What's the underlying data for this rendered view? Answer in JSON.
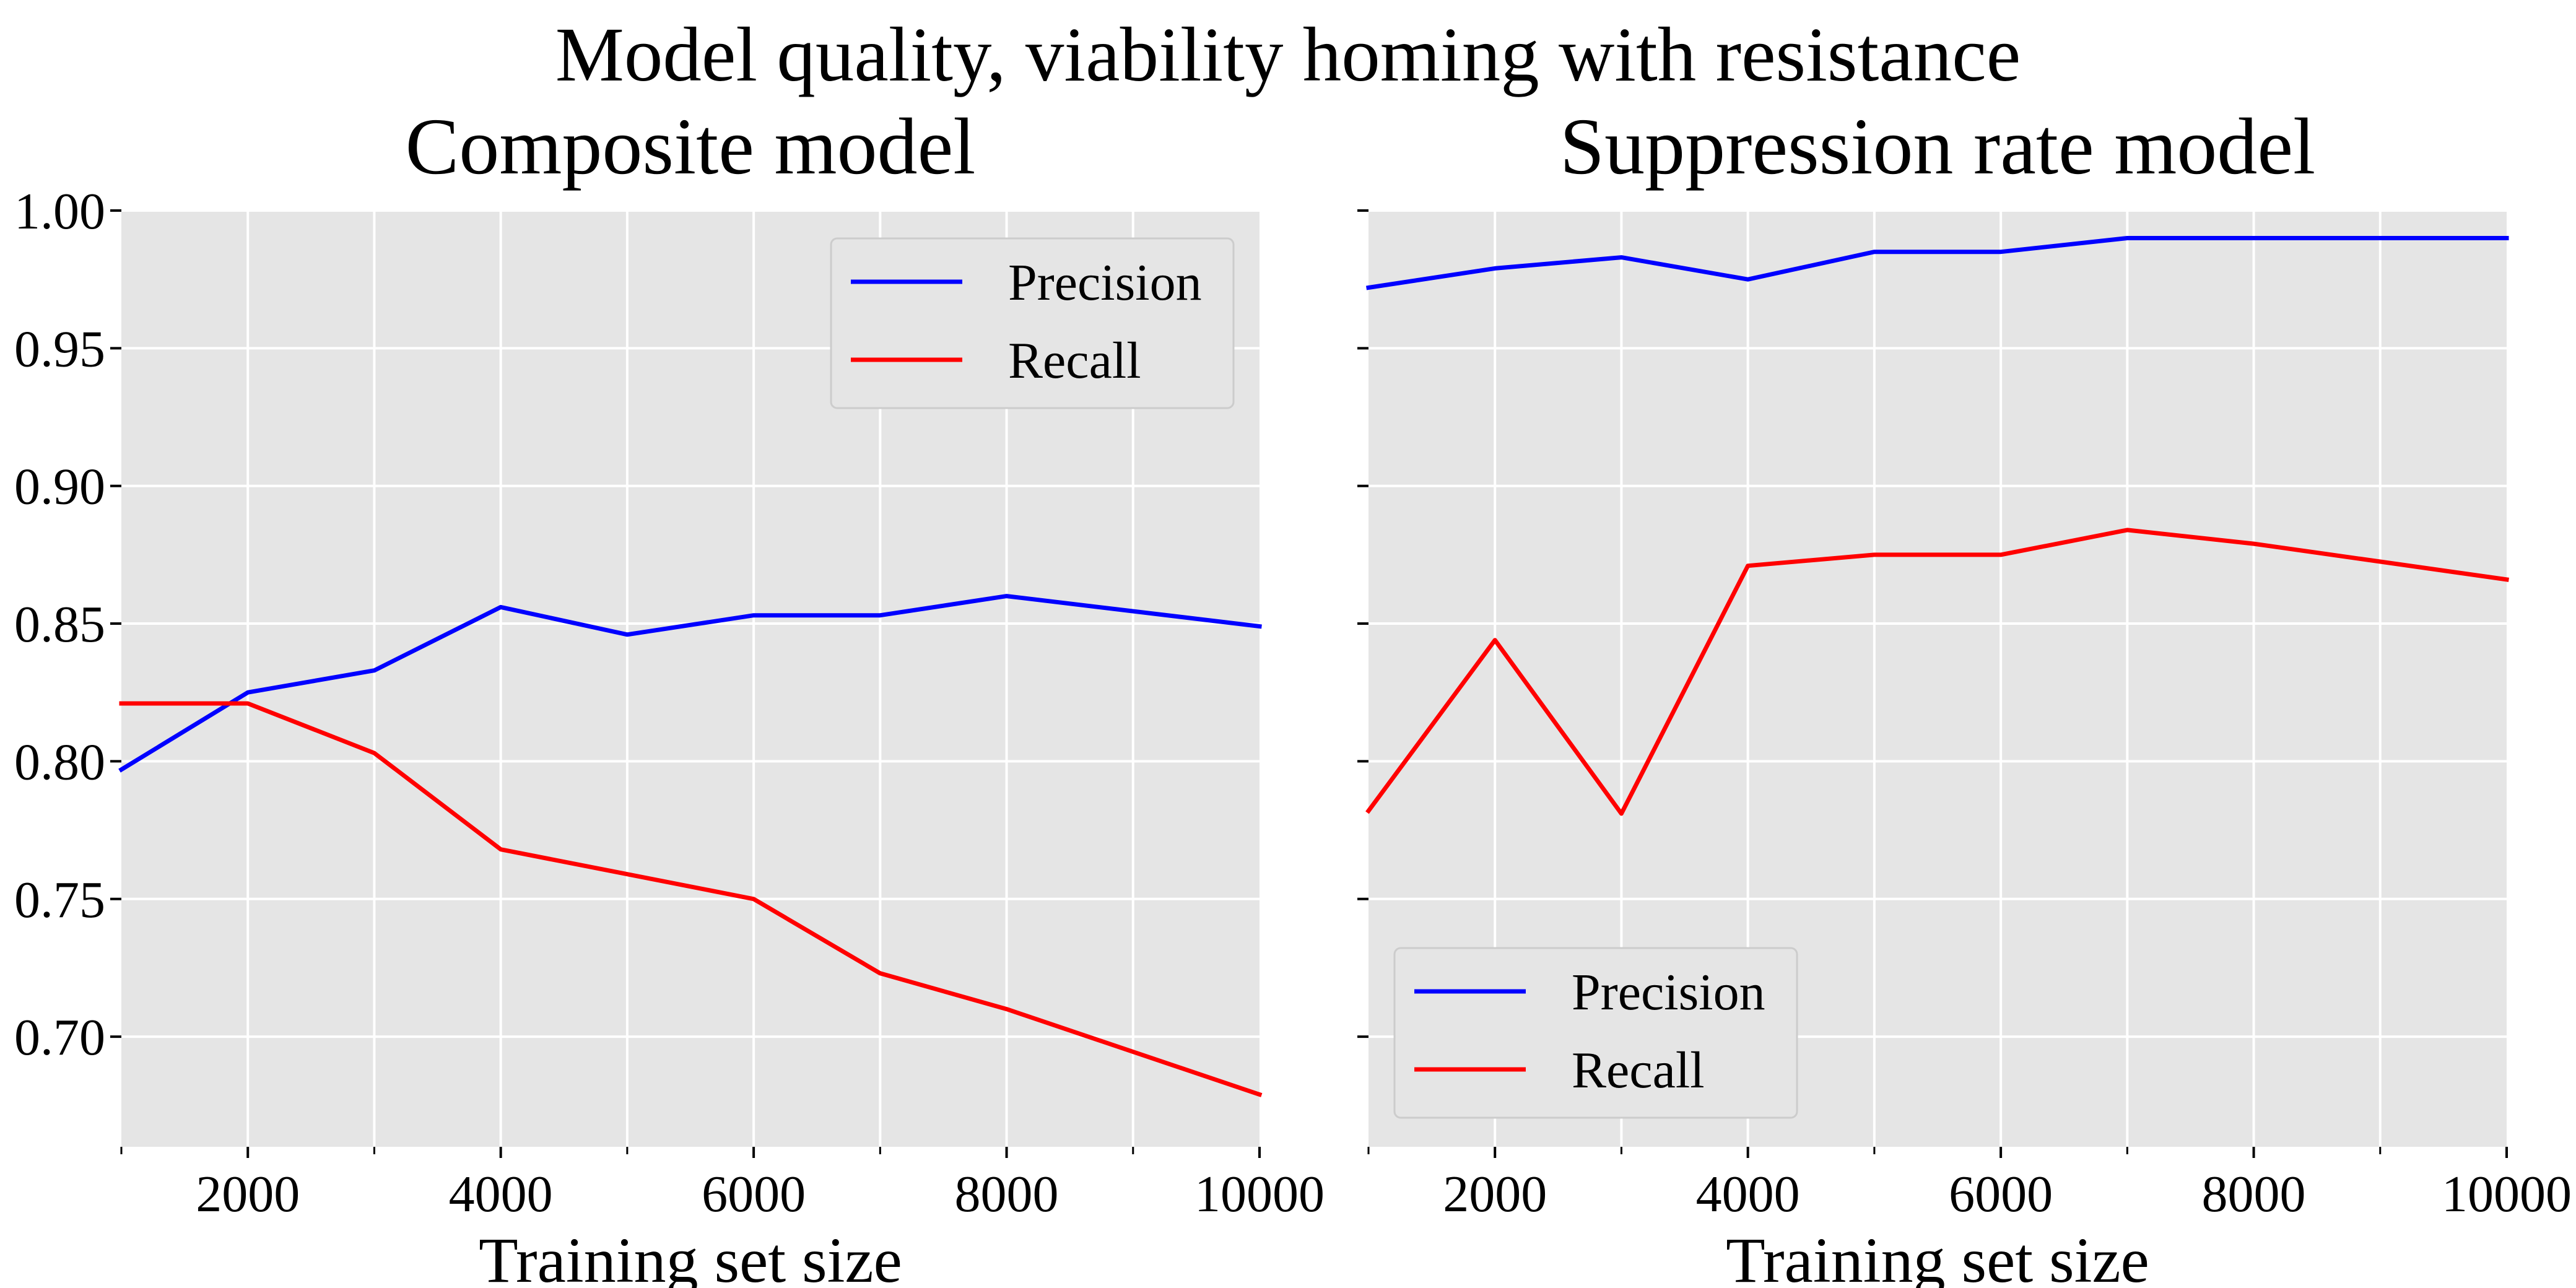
{
  "figure": {
    "suptitle": "Model quality, viability homing with resistance"
  },
  "chart_data": [
    {
      "type": "line",
      "title": "Composite model",
      "xlabel": "Training set size",
      "ylabel": "",
      "xlim": [
        1000,
        10000
      ],
      "ylim": [
        0.66,
        1.0
      ],
      "xticks_major": [
        2000,
        4000,
        6000,
        8000,
        10000
      ],
      "xticks_minor": [
        1000,
        3000,
        5000,
        7000,
        9000
      ],
      "yticks": [
        0.7,
        0.75,
        0.8,
        0.85,
        0.9,
        0.95,
        1.0
      ],
      "ytick_labels": [
        "0.70",
        "0.75",
        "0.80",
        "0.85",
        "0.90",
        "0.95",
        "1.00"
      ],
      "show_ytick_labels": true,
      "grid": true,
      "legend_position": "top-right",
      "x": [
        1000,
        2000,
        3000,
        4000,
        5000,
        6000,
        7000,
        8000,
        10000
      ],
      "series": [
        {
          "name": "Precision",
          "color": "#0000ff",
          "values": [
            0.797,
            0.825,
            0.833,
            0.856,
            0.846,
            0.853,
            0.853,
            0.86,
            0.849
          ]
        },
        {
          "name": "Recall",
          "color": "#ff0000",
          "values": [
            0.821,
            0.821,
            0.803,
            0.768,
            0.759,
            0.75,
            0.723,
            0.71,
            0.679
          ]
        }
      ]
    },
    {
      "type": "line",
      "title": "Suppression rate model",
      "xlabel": "Training set size",
      "ylabel": "",
      "xlim": [
        1000,
        10000
      ],
      "ylim": [
        0.66,
        1.0
      ],
      "xticks_major": [
        2000,
        4000,
        6000,
        8000,
        10000
      ],
      "xticks_minor": [
        1000,
        3000,
        5000,
        7000,
        9000
      ],
      "yticks": [
        0.7,
        0.75,
        0.8,
        0.85,
        0.9,
        0.95,
        1.0
      ],
      "ytick_labels": [],
      "show_ytick_labels": false,
      "grid": true,
      "legend_position": "bottom-left",
      "x": [
        1000,
        2000,
        3000,
        4000,
        5000,
        6000,
        7000,
        8000,
        10000
      ],
      "series": [
        {
          "name": "Precision",
          "color": "#0000ff",
          "values": [
            0.972,
            0.979,
            0.983,
            0.975,
            0.985,
            0.985,
            0.99,
            0.99,
            0.99
          ]
        },
        {
          "name": "Recall",
          "color": "#ff0000",
          "values": [
            0.782,
            0.844,
            0.781,
            0.871,
            0.875,
            0.875,
            0.884,
            0.879,
            0.866
          ]
        }
      ]
    }
  ]
}
